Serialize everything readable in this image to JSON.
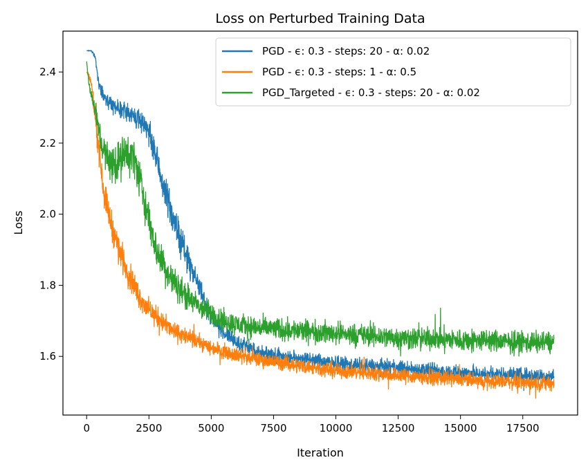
{
  "chart_data": {
    "type": "line",
    "title": "Loss on Perturbed Training Data",
    "xlabel": "Iteration",
    "ylabel": "Loss",
    "xlim": [
      -950,
      19700
    ],
    "ylim": [
      1.435,
      2.515
    ],
    "xticks": [
      0,
      2500,
      5000,
      7500,
      10000,
      12500,
      15000,
      17500
    ],
    "xtick_labels": [
      "0",
      "2500",
      "5000",
      "7500",
      "10000",
      "12500",
      "15000",
      "17500"
    ],
    "yticks": [
      1.6,
      1.8,
      2.0,
      2.2,
      2.4
    ],
    "ytick_labels": [
      "1.6",
      "1.8",
      "2.0",
      "2.2",
      "2.4"
    ],
    "grid": false,
    "legend_position": "upper right",
    "series": [
      {
        "name": "PGD - ϵ: 0.3 - steps: 20 - α: 0.02",
        "color": "#1f77b4",
        "x": [
          0,
          200,
          350,
          500,
          700,
          1000,
          1300,
          1600,
          2000,
          2400,
          2700,
          3000,
          3300,
          3600,
          3900,
          4200,
          4500,
          4800,
          5200,
          5600,
          6000,
          7000,
          8000,
          9000,
          10000,
          11000,
          12000,
          13000,
          14000,
          15000,
          16000,
          17000,
          18000,
          18750
        ],
        "y": [
          2.46,
          2.46,
          2.44,
          2.36,
          2.33,
          2.31,
          2.3,
          2.29,
          2.27,
          2.25,
          2.18,
          2.1,
          2.03,
          1.96,
          1.9,
          1.85,
          1.8,
          1.74,
          1.69,
          1.66,
          1.64,
          1.61,
          1.6,
          1.59,
          1.58,
          1.575,
          1.57,
          1.565,
          1.56,
          1.555,
          1.55,
          1.55,
          1.545,
          1.545
        ],
        "noise": [
          0,
          0.005,
          0.01,
          0.02,
          0.025,
          0.03,
          0.035,
          0.035,
          0.04,
          0.05,
          0.06,
          0.07,
          0.07,
          0.065,
          0.06,
          0.05,
          0.045,
          0.04,
          0.035,
          0.03,
          0.03,
          0.03,
          0.03,
          0.03,
          0.03,
          0.03,
          0.03,
          0.03,
          0.03,
          0.03,
          0.03,
          0.03,
          0.03,
          0.03
        ]
      },
      {
        "name": "PGD - ϵ: 0.3 - steps: 1 - α: 0.5",
        "color": "#ff7f0e",
        "x": [
          0,
          100,
          200,
          300,
          500,
          700,
          1000,
          1300,
          1700,
          2100,
          2500,
          3000,
          3500,
          4000,
          4500,
          5000,
          5500,
          6000,
          7000,
          8000,
          9000,
          10000,
          11000,
          12000,
          13000,
          14000,
          15000,
          16000,
          17000,
          18000,
          18750
        ],
        "y": [
          2.4,
          2.39,
          2.36,
          2.3,
          2.18,
          2.06,
          1.97,
          1.9,
          1.83,
          1.77,
          1.73,
          1.7,
          1.67,
          1.655,
          1.64,
          1.625,
          1.615,
          1.605,
          1.59,
          1.58,
          1.57,
          1.56,
          1.555,
          1.55,
          1.545,
          1.54,
          1.535,
          1.53,
          1.53,
          1.525,
          1.525
        ],
        "noise": [
          0,
          0.01,
          0.03,
          0.05,
          0.06,
          0.06,
          0.06,
          0.06,
          0.055,
          0.05,
          0.045,
          0.04,
          0.035,
          0.035,
          0.03,
          0.03,
          0.03,
          0.03,
          0.03,
          0.03,
          0.03,
          0.03,
          0.03,
          0.03,
          0.03,
          0.03,
          0.03,
          0.03,
          0.03,
          0.03,
          0.03
        ]
      },
      {
        "name": "PGD_Targeted - ϵ: 0.3 - steps: 20 - α: 0.02",
        "color": "#2ca02c",
        "x": [
          0,
          100,
          250,
          400,
          600,
          800,
          1000,
          1300,
          1600,
          1900,
          2200,
          2500,
          2800,
          3200,
          3600,
          4000,
          4500,
          5000,
          5500,
          6000,
          7000,
          8000,
          9000,
          10000,
          11000,
          12000,
          13000,
          14000,
          15000,
          16000,
          17000,
          18000,
          18750
        ],
        "y": [
          2.43,
          2.36,
          2.32,
          2.27,
          2.2,
          2.16,
          2.14,
          2.15,
          2.17,
          2.16,
          2.08,
          1.98,
          1.9,
          1.84,
          1.8,
          1.77,
          1.74,
          1.72,
          1.7,
          1.69,
          1.68,
          1.675,
          1.67,
          1.665,
          1.66,
          1.655,
          1.65,
          1.65,
          1.645,
          1.645,
          1.64,
          1.64,
          1.64
        ],
        "noise": [
          0,
          0.02,
          0.03,
          0.05,
          0.06,
          0.07,
          0.08,
          0.08,
          0.08,
          0.08,
          0.08,
          0.07,
          0.07,
          0.065,
          0.06,
          0.055,
          0.05,
          0.045,
          0.045,
          0.045,
          0.045,
          0.045,
          0.045,
          0.045,
          0.045,
          0.045,
          0.045,
          0.045,
          0.045,
          0.045,
          0.045,
          0.045,
          0.045
        ]
      }
    ]
  }
}
